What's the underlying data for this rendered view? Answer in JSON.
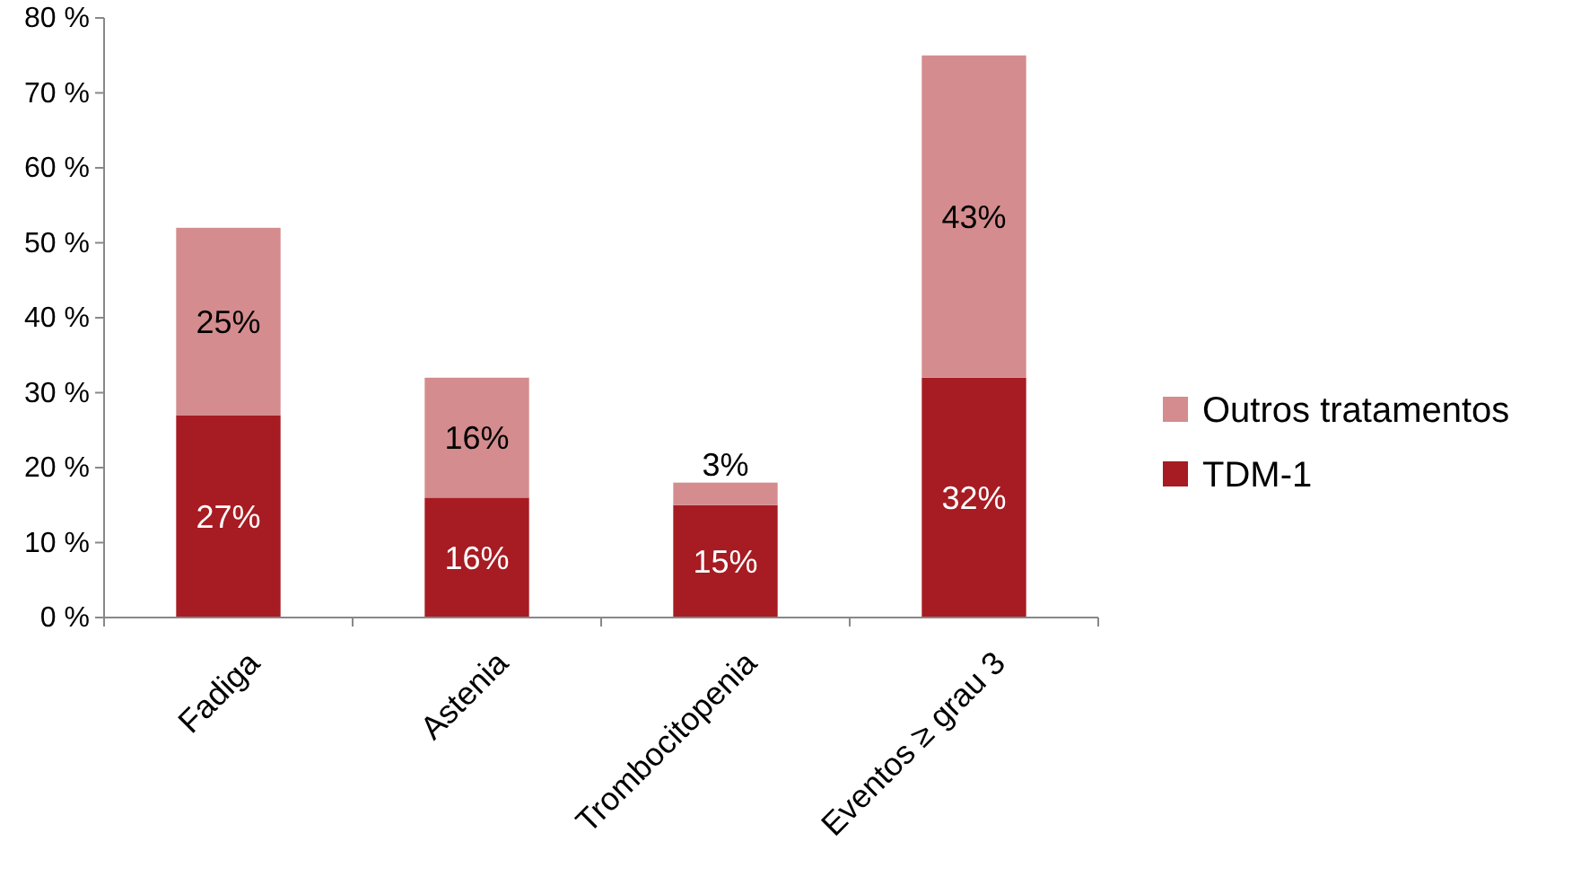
{
  "chart_data": {
    "type": "bar",
    "stacked": true,
    "categories": [
      "Fadiga",
      "Astenia",
      "Trombocitopenia",
      "Eventos ≥ grau 3"
    ],
    "series": [
      {
        "name": "TDM-1",
        "color": "#a61c22",
        "values": [
          27,
          16,
          15,
          32
        ],
        "value_labels": [
          "27%",
          "16%",
          "15%",
          "32%"
        ]
      },
      {
        "name": "Outros tratamentos",
        "color": "#d48c8e",
        "values": [
          25,
          16,
          3,
          43
        ],
        "value_labels": [
          "25%",
          "16%",
          "3%",
          "43%"
        ]
      }
    ],
    "ylim": [
      0,
      80
    ],
    "yticks": [
      {
        "value": 0,
        "label": "0 %"
      },
      {
        "value": 10,
        "label": "10 %"
      },
      {
        "value": 20,
        "label": "20 %"
      },
      {
        "value": 30,
        "label": "30 %"
      },
      {
        "value": 40,
        "label": "40 %"
      },
      {
        "value": 50,
        "label": "50 %"
      },
      {
        "value": 60,
        "label": "60 %"
      },
      {
        "value": 70,
        "label": "70 %"
      },
      {
        "value": 80,
        "label": "80 %"
      }
    ],
    "grid": false,
    "legend": "right"
  }
}
